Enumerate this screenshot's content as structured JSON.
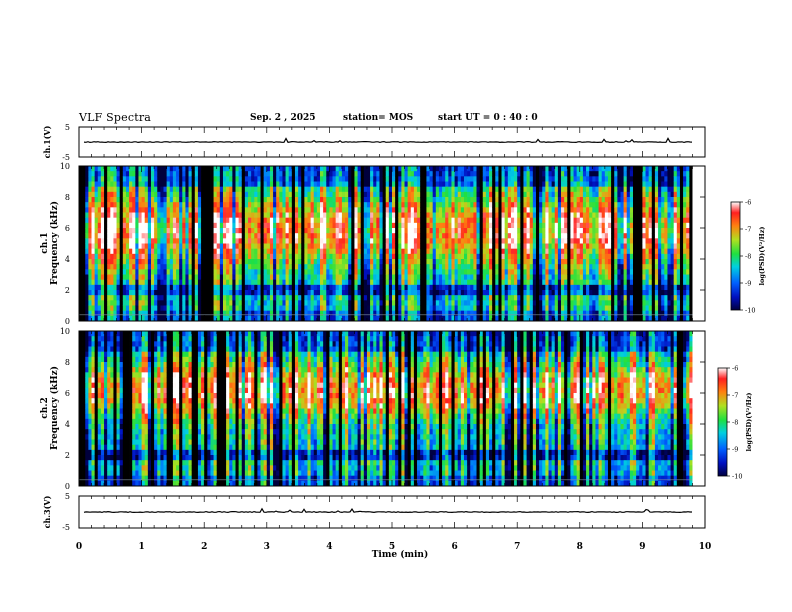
{
  "header": {
    "title": "VLF Spectra",
    "date": "Sep. 2 , 2025",
    "station": "station= MOS",
    "start": "start UT =  0 : 40 : 0"
  },
  "chart_data": [
    {
      "type": "line",
      "name": "ch1-waveform",
      "ylabel": "ch.1(V)",
      "ylim": [
        -5,
        5
      ],
      "yticks": [
        "5",
        "-5"
      ],
      "xlim": [
        0,
        10
      ],
      "baseline": 0
    },
    {
      "type": "heatmap",
      "name": "ch1-spectrogram",
      "ylabel": "ch.1\nFrequency (kHz)",
      "ylabel_line1": "ch.1",
      "ylabel_line2": "Frequency (kHz)",
      "ylim": [
        0,
        10
      ],
      "yticks": [
        "0",
        "2",
        "4",
        "6",
        "8",
        "10"
      ],
      "xlim": [
        0,
        10
      ],
      "data_xmax": 9.8,
      "colorbar": {
        "min": -10,
        "max": -6,
        "ticks": [
          "-6",
          "-7",
          "-8",
          "-9",
          "-10"
        ],
        "label": "log(PSD)(V²/Hz)"
      }
    },
    {
      "type": "heatmap",
      "name": "ch2-spectrogram",
      "ylabel_line1": "ch.2",
      "ylabel_line2": "Frequency (kHz)",
      "ylim": [
        0,
        10
      ],
      "yticks": [
        "0",
        "2",
        "4",
        "6",
        "8",
        "10"
      ],
      "xlim": [
        0,
        10
      ],
      "data_xmax": 9.8,
      "colorbar": {
        "min": -10,
        "max": -6,
        "ticks": [
          "-6",
          "-7",
          "-8",
          "-9",
          "-10"
        ],
        "label": "log(PSD)(V²/Hz)"
      }
    },
    {
      "type": "line",
      "name": "ch3-waveform",
      "ylabel": "ch.3(V)",
      "ylim": [
        -5,
        5
      ],
      "yticks": [
        "5",
        "-5"
      ],
      "xlim": [
        0,
        10
      ],
      "baseline": 0
    }
  ],
  "xaxis": {
    "label": "Time  (min)",
    "ticks": [
      "0",
      "1",
      "2",
      "3",
      "4",
      "5",
      "6",
      "7",
      "8",
      "9",
      "10"
    ]
  },
  "colors": {
    "red": "#ff2020",
    "yellow": "#f0e020",
    "green": "#20d040",
    "cyan": "#20d0e0",
    "blue": "#1040ff",
    "navy": "#000080",
    "black": "#000000"
  }
}
